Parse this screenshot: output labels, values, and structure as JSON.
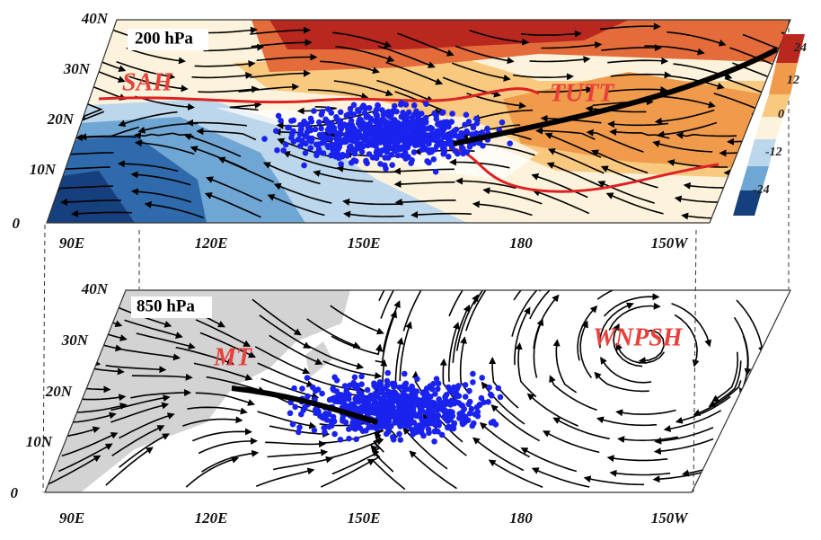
{
  "panels": [
    {
      "level": "200 hPa",
      "features": [
        "SAH",
        "TUTT"
      ],
      "lat_labels": [
        "40N",
        "30N",
        "20N",
        "10N",
        "0"
      ],
      "lon_labels": [
        "90E",
        "120E",
        "150E",
        "180",
        "150W"
      ]
    },
    {
      "level": "850 hPa",
      "features": [
        "MT",
        "WNPSH"
      ],
      "lat_labels": [
        "40N",
        "30N",
        "20N",
        "10N",
        "0"
      ],
      "lon_labels": [
        "90E",
        "120E",
        "150E",
        "180",
        "150W"
      ]
    }
  ],
  "colorbar": {
    "labels": [
      "24",
      "12",
      "0",
      "-12",
      "-24"
    ]
  }
}
